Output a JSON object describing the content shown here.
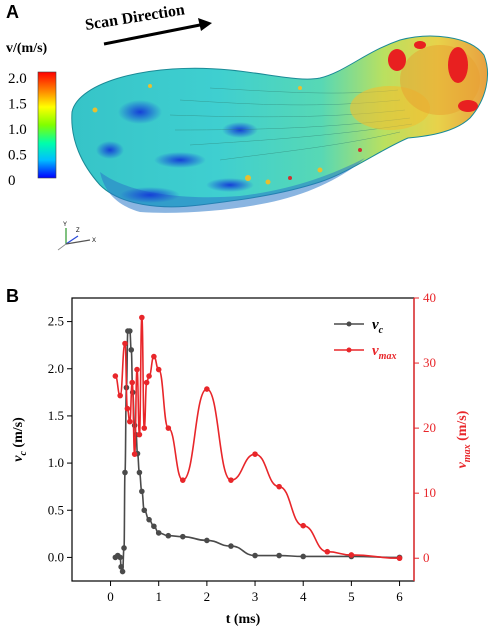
{
  "panel_a": {
    "label": "A",
    "scan_direction": "Scan Direction",
    "colorbar": {
      "title": "v/(m/s)",
      "ticks": [
        "2.0",
        "1.5",
        "1.0",
        "0.5",
        "0"
      ],
      "range": [
        0,
        2.0
      ],
      "colors": [
        "#0000ff",
        "#00bfff",
        "#00ffaa",
        "#80ff00",
        "#ffff00",
        "#ff8000",
        "#ff0000"
      ]
    },
    "axes_triad": {
      "y": "Y",
      "z": "Z",
      "x": "X"
    }
  },
  "panel_b": {
    "label": "B"
  },
  "chart_data": {
    "type": "line",
    "xlabel": "t (ms)",
    "ylabel_left": "v_c (m/s)",
    "ylabel_left_main": "v",
    "ylabel_left_sub": "c",
    "ylabel_left_unit": "(m/s)",
    "ylabel_right": "v_max (m/s)",
    "ylabel_right_main": "v",
    "ylabel_right_sub": "max",
    "ylabel_right_unit": "(m/s)",
    "xlim": [
      -0.8,
      6.3
    ],
    "ylim_left": [
      -0.25,
      2.75
    ],
    "ylim_right": [
      -3.5,
      40
    ],
    "x_ticks": [
      "0",
      "1",
      "2",
      "3",
      "4",
      "5",
      "6"
    ],
    "y_ticks_left": [
      "0.0",
      "0.5",
      "1.0",
      "1.5",
      "2.0",
      "2.5"
    ],
    "y_ticks_right": [
      "0",
      "10",
      "20",
      "30",
      "40"
    ],
    "legend_position": "top-right",
    "series": [
      {
        "name": "v_c",
        "legend_main": "v",
        "legend_sub": "c",
        "axis": "left",
        "color": "#4a4a4a",
        "x": [
          0.1,
          0.15,
          0.2,
          0.22,
          0.25,
          0.28,
          0.3,
          0.33,
          0.36,
          0.4,
          0.43,
          0.46,
          0.5,
          0.53,
          0.56,
          0.6,
          0.65,
          0.7,
          0.8,
          0.9,
          1.0,
          1.2,
          1.5,
          2.0,
          2.5,
          3.0,
          3.5,
          4.0,
          5.0,
          6.0
        ],
        "y": [
          0.0,
          0.02,
          0.0,
          -0.1,
          -0.15,
          0.1,
          0.9,
          1.8,
          2.4,
          2.4,
          2.2,
          1.75,
          1.4,
          1.3,
          1.1,
          0.9,
          0.7,
          0.5,
          0.4,
          0.33,
          0.26,
          0.23,
          0.22,
          0.18,
          0.12,
          0.02,
          0.02,
          0.01,
          0.01,
          0.0
        ]
      },
      {
        "name": "v_max",
        "legend_main": "v",
        "legend_sub": "max",
        "axis": "right",
        "color": "#e8262a",
        "x": [
          0.1,
          0.2,
          0.3,
          0.35,
          0.4,
          0.45,
          0.5,
          0.55,
          0.6,
          0.65,
          0.7,
          0.75,
          0.8,
          0.9,
          1.0,
          1.2,
          1.5,
          2.0,
          2.5,
          3.0,
          3.5,
          4.0,
          4.5,
          5.0,
          6.0
        ],
        "y": [
          28,
          25,
          33,
          23,
          21,
          27,
          16,
          29,
          19,
          37,
          20,
          27,
          28,
          31,
          29,
          20,
          12,
          26,
          12,
          16,
          11,
          5,
          1,
          0.5,
          0
        ]
      }
    ]
  }
}
